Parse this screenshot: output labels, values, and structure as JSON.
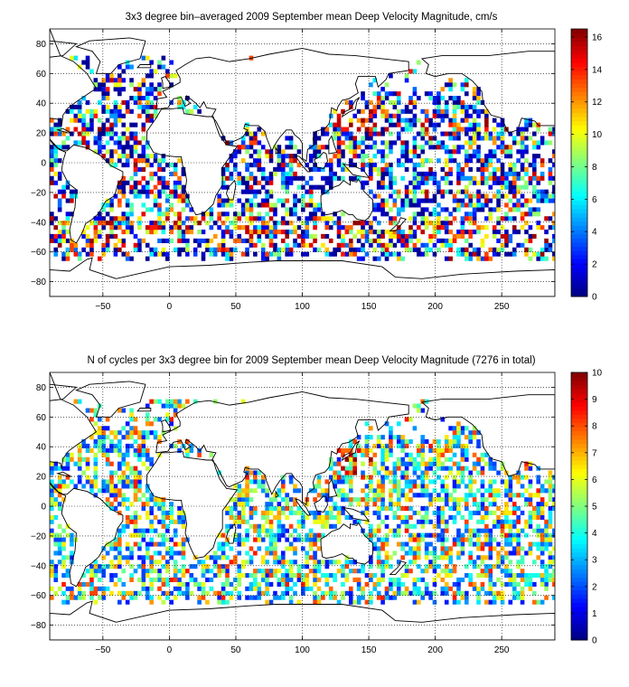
{
  "chart_data": [
    {
      "type": "heatmap",
      "title": "3x3 degree bin–averaged 2009 September mean Deep Velocity Magnitude, cm/s",
      "xlabel": "",
      "ylabel": "",
      "xlim": [
        -90,
        290
      ],
      "ylim": [
        -90,
        90
      ],
      "xticks": [
        -50,
        0,
        50,
        100,
        150,
        200,
        250
      ],
      "yticks": [
        -80,
        -60,
        -40,
        -20,
        0,
        20,
        40,
        60,
        80
      ],
      "xtick_labels": [
        "−50",
        "0",
        "50",
        "100",
        "150",
        "200",
        "250"
      ],
      "ytick_labels": [
        "−80",
        "−60",
        "−40",
        "−20",
        "0",
        "20",
        "40",
        "60",
        "80"
      ],
      "bin_size_deg": 3,
      "grid": true,
      "colormap": "jet",
      "colorbar": {
        "min": 0,
        "max": 16.5,
        "ticks": [
          0,
          2,
          4,
          6,
          8,
          10,
          12,
          14,
          16
        ],
        "tick_labels": [
          "0",
          "2",
          "4",
          "6",
          "8",
          "10",
          "12",
          "14",
          "16"
        ]
      },
      "basemap": "world coastlines",
      "colors": {
        "ocean_bins_typical": "#0033ff",
        "high_values": "#c00000"
      }
    },
    {
      "type": "heatmap",
      "title": "N of cycles per 3x3 degree bin for 2009 September mean Deep Velocity Magnitude (7276 in total)",
      "xlabel": "",
      "ylabel": "",
      "xlim": [
        -90,
        290
      ],
      "ylim": [
        -90,
        90
      ],
      "xticks": [
        -50,
        0,
        50,
        100,
        150,
        200,
        250
      ],
      "yticks": [
        -80,
        -60,
        -40,
        -20,
        0,
        20,
        40,
        60,
        80
      ],
      "xtick_labels": [
        "−50",
        "0",
        "50",
        "100",
        "150",
        "200",
        "250"
      ],
      "ytick_labels": [
        "−80",
        "−60",
        "−40",
        "−20",
        "0",
        "20",
        "40",
        "60",
        "80"
      ],
      "bin_size_deg": 3,
      "grid": true,
      "colormap": "jet",
      "total_cycles": 7276,
      "colorbar": {
        "min": 0,
        "max": 10,
        "ticks": [
          0,
          1,
          2,
          3,
          4,
          5,
          6,
          7,
          8,
          9,
          10
        ],
        "tick_labels": [
          "0",
          "1",
          "2",
          "3",
          "4",
          "5",
          "6",
          "7",
          "8",
          "9",
          "10"
        ]
      },
      "basemap": "world coastlines"
    }
  ]
}
